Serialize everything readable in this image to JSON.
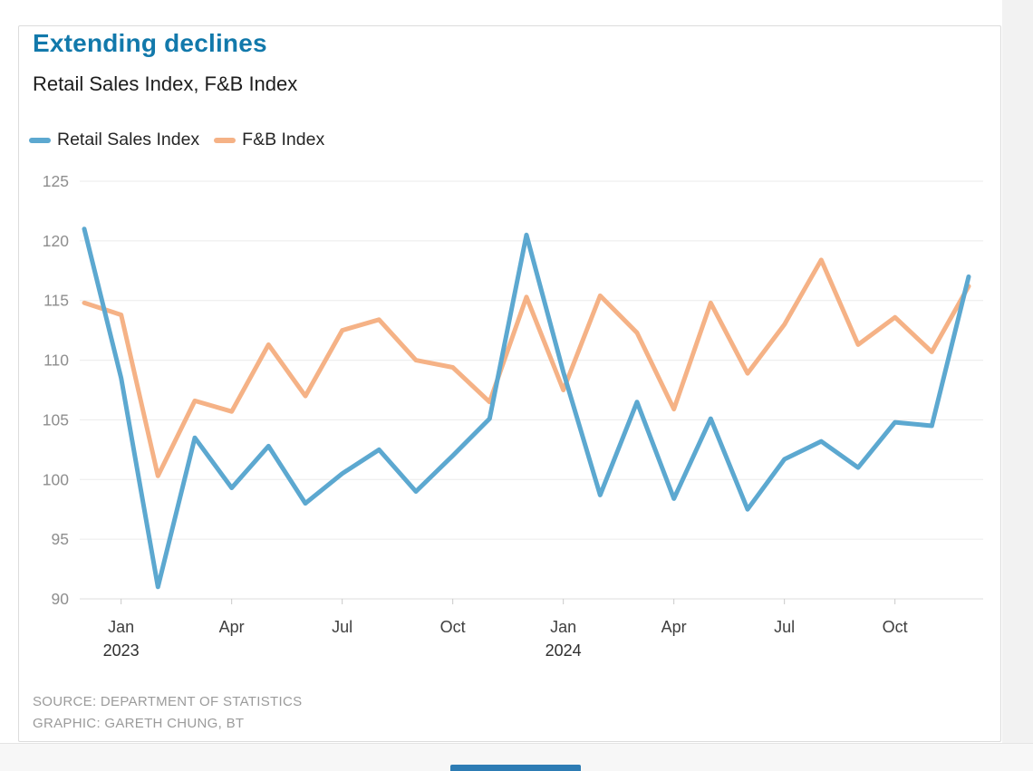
{
  "header": {
    "title": "Extending declines",
    "subtitle": "Retail Sales Index, F&B Index"
  },
  "legend": [
    {
      "label": "Retail Sales Index",
      "color": "#5ca8d0"
    },
    {
      "label": "F&B Index",
      "color": "#f5b286"
    }
  ],
  "footer": {
    "source": "SOURCE: DEPARTMENT OF STATISTICS",
    "credit": "GRAPHIC: GARETH CHUNG, BT"
  },
  "chart_data": {
    "type": "line",
    "title": "Extending declines",
    "subtitle": "Retail Sales Index, F&B Index",
    "grid": "horizontal",
    "legend_position": "top-left",
    "ylim": [
      90,
      125
    ],
    "ytick_step": 5,
    "yticks": [
      90,
      95,
      100,
      105,
      110,
      115,
      120,
      125
    ],
    "x": [
      "Dec 2022",
      "Jan 2023",
      "Feb 2023",
      "Mar 2023",
      "Apr 2023",
      "May 2023",
      "Jun 2023",
      "Jul 2023",
      "Aug 2023",
      "Sep 2023",
      "Oct 2023",
      "Nov 2023",
      "Dec 2023",
      "Jan 2024",
      "Feb 2024",
      "Mar 2024",
      "Apr 2024",
      "May 2024",
      "Jun 2024",
      "Jul 2024",
      "Aug 2024",
      "Sep 2024",
      "Oct 2024",
      "Nov 2024",
      "Dec 2024"
    ],
    "xticks": [
      {
        "month_index": 1,
        "label": "Jan",
        "year": "2023"
      },
      {
        "month_index": 4,
        "label": "Apr"
      },
      {
        "month_index": 7,
        "label": "Jul"
      },
      {
        "month_index": 10,
        "label": "Oct"
      },
      {
        "month_index": 13,
        "label": "Jan",
        "year": "2024"
      },
      {
        "month_index": 16,
        "label": "Apr"
      },
      {
        "month_index": 19,
        "label": "Jul"
      },
      {
        "month_index": 22,
        "label": "Oct"
      }
    ],
    "series": [
      {
        "name": "Retail Sales Index",
        "color": "#5ca8d0",
        "values": [
          121,
          108.5,
          91,
          103.5,
          99.3,
          102.8,
          98,
          100.5,
          102.5,
          99,
          102,
          105.1,
          120.5,
          109,
          98.7,
          106.5,
          98.4,
          105.1,
          97.5,
          101.7,
          103.2,
          101,
          104.8,
          104.5,
          117
        ]
      },
      {
        "name": "F&B Index",
        "color": "#f5b286",
        "values": [
          114.8,
          113.8,
          100.3,
          106.6,
          105.7,
          111.3,
          107,
          112.5,
          113.4,
          110,
          109.4,
          106.5,
          115.3,
          107.5,
          115.4,
          112.3,
          105.9,
          114.8,
          108.9,
          113,
          118.4,
          111.3,
          113.6,
          110.7,
          116.2
        ]
      }
    ]
  },
  "colors": {
    "title": "#1279ab",
    "gridline": "#ebebeb",
    "axis_line": "#dedede",
    "tick_mark": "#c9c9c9",
    "y_label": "#8e8e8e",
    "x_label": "#3f3f3f",
    "year_label": "#2f2f2f"
  }
}
